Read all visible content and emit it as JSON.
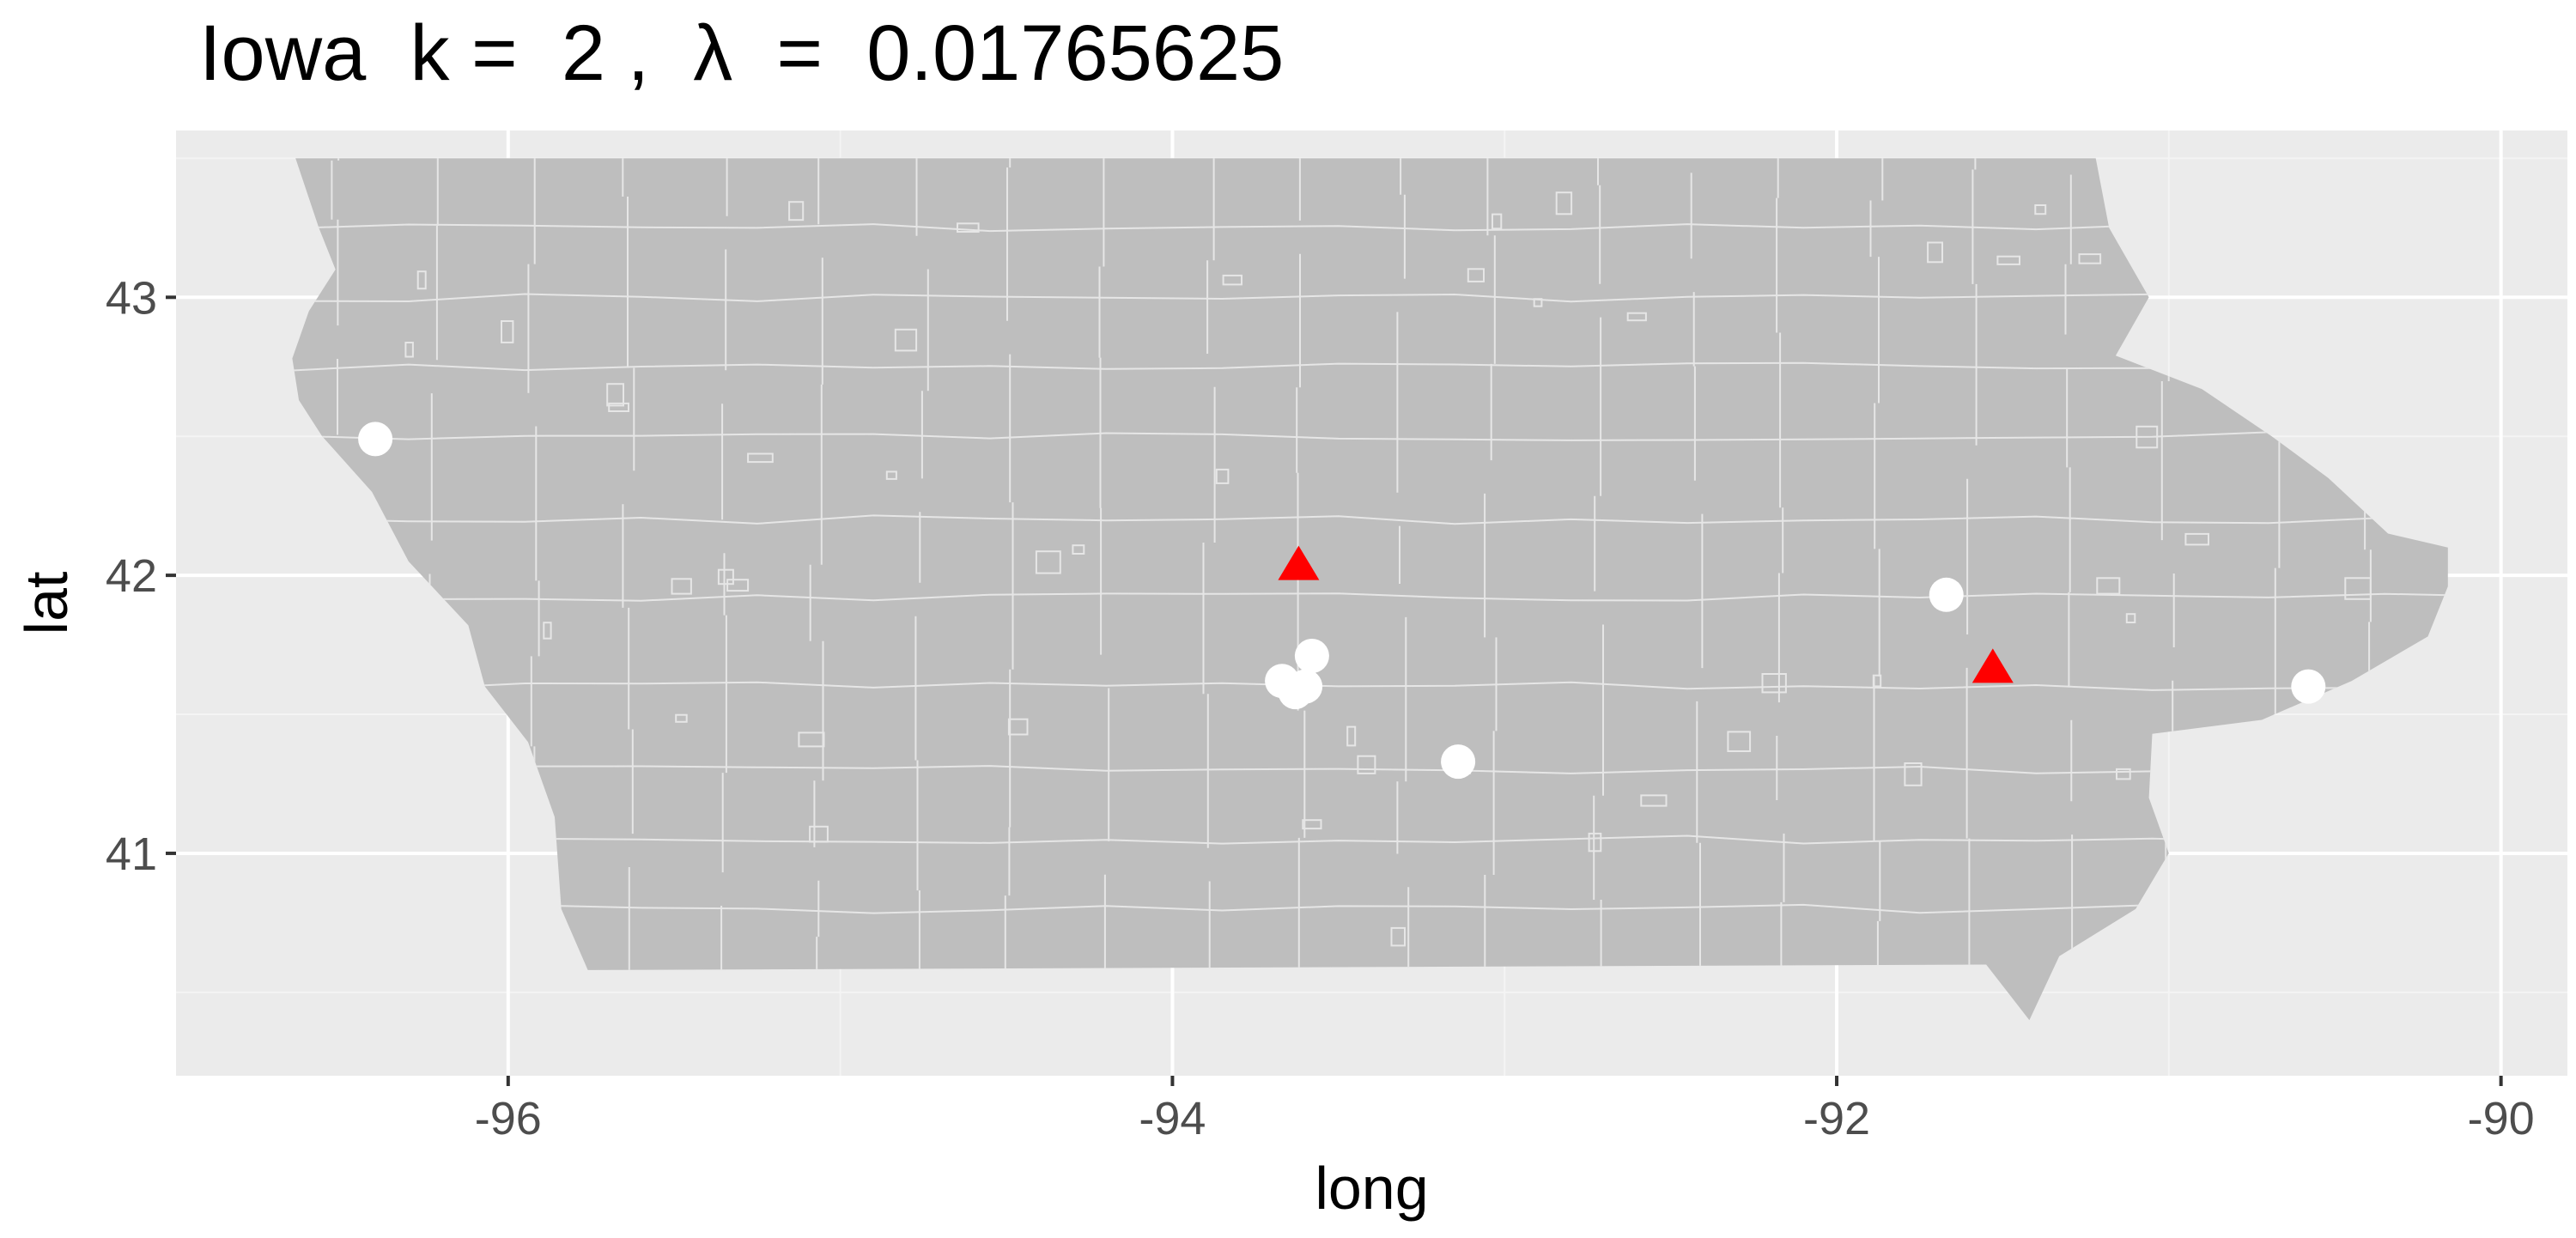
{
  "title": "Iowa  k =  2 ,  λ  =  0.01765625",
  "xlabel": "long",
  "ylabel": "lat",
  "colors": {
    "panel": "#ebebeb",
    "grid_major": "#ffffff",
    "grid_minor": "#f4f4f4",
    "land": "#bebebe",
    "boundary": "#e6e6e6",
    "point": "#ffffff",
    "triangle": "#ff0000"
  },
  "chart_data": {
    "type": "scatter",
    "xlim": [
      -97.0,
      -89.8
    ],
    "ylim": [
      40.2,
      43.6
    ],
    "x_ticks": [
      -96,
      -94,
      -92,
      -90
    ],
    "x_tick_labels": [
      "-96",
      "-94",
      "-92",
      "-90"
    ],
    "y_ticks": [
      41,
      42,
      43
    ],
    "y_tick_labels": [
      "41",
      "42",
      "43"
    ],
    "grid": true,
    "state_outline": [
      [
        -96.64,
        43.5
      ],
      [
        -91.22,
        43.5
      ],
      [
        -91.18,
        43.25
      ],
      [
        -91.06,
        43.0
      ],
      [
        -91.16,
        42.79
      ],
      [
        -90.9,
        42.67
      ],
      [
        -90.69,
        42.5
      ],
      [
        -90.52,
        42.35
      ],
      [
        -90.34,
        42.15
      ],
      [
        -90.16,
        42.1
      ],
      [
        -90.16,
        41.96
      ],
      [
        -90.22,
        41.78
      ],
      [
        -90.45,
        41.62
      ],
      [
        -90.72,
        41.48
      ],
      [
        -91.05,
        41.43
      ],
      [
        -91.06,
        41.2
      ],
      [
        -91.0,
        41.0
      ],
      [
        -91.1,
        40.8
      ],
      [
        -91.33,
        40.63
      ],
      [
        -91.42,
        40.4
      ],
      [
        -91.55,
        40.6
      ],
      [
        -95.76,
        40.58
      ],
      [
        -95.84,
        40.8
      ],
      [
        -95.86,
        41.13
      ],
      [
        -95.94,
        41.4
      ],
      [
        -96.07,
        41.6
      ],
      [
        -96.12,
        41.82
      ],
      [
        -96.3,
        42.05
      ],
      [
        -96.41,
        42.3
      ],
      [
        -96.56,
        42.5
      ],
      [
        -96.63,
        42.63
      ],
      [
        -96.65,
        42.78
      ],
      [
        -96.6,
        42.95
      ],
      [
        -96.52,
        43.1
      ],
      [
        -96.57,
        43.25
      ],
      [
        -96.64,
        43.5
      ]
    ],
    "series": [
      {
        "shape": "circle",
        "points": [
          {
            "x": -96.4,
            "y": 42.49
          },
          {
            "x": -93.67,
            "y": 41.62
          },
          {
            "x": -93.63,
            "y": 41.58
          },
          {
            "x": -93.6,
            "y": 41.6
          },
          {
            "x": -93.58,
            "y": 41.71
          },
          {
            "x": -93.14,
            "y": 41.33
          },
          {
            "x": -91.67,
            "y": 41.93
          },
          {
            "x": -90.58,
            "y": 41.6
          }
        ]
      },
      {
        "shape": "triangle",
        "points": [
          {
            "x": -93.62,
            "y": 42.03
          },
          {
            "x": -91.53,
            "y": 41.66
          }
        ]
      }
    ]
  }
}
